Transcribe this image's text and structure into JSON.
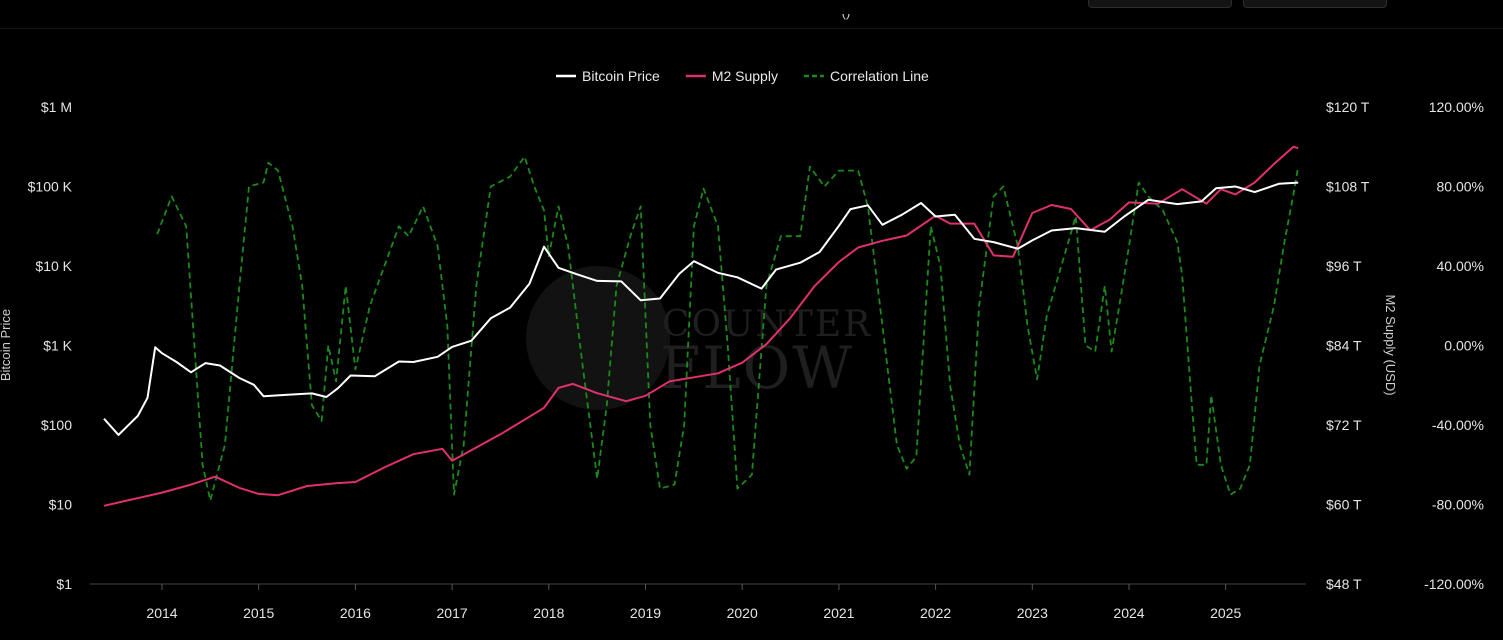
{
  "page": {
    "title_fragment": "()"
  },
  "chart_data": {
    "type": "line",
    "xlabel": "",
    "x_ticks": [
      "2014",
      "2015",
      "2016",
      "2017",
      "2018",
      "2019",
      "2020",
      "2021",
      "2022",
      "2023",
      "2024",
      "2025"
    ],
    "y_left": {
      "label": "Bitcoin Price",
      "scale": "log",
      "range": [
        1,
        1000000
      ],
      "ticks": [
        {
          "value": 1,
          "label": "$1"
        },
        {
          "value": 10,
          "label": "$10"
        },
        {
          "value": 100,
          "label": "$100"
        },
        {
          "value": 1000,
          "label": "$1 K"
        },
        {
          "value": 10000,
          "label": "$10 K"
        },
        {
          "value": 100000,
          "label": "$100 K"
        },
        {
          "value": 1000000,
          "label": "$1 M"
        }
      ]
    },
    "y_right": {
      "label": "M2 Supply (USD)",
      "range": [
        48,
        120
      ],
      "ticks": [
        {
          "value": 48,
          "label": "$48 T"
        },
        {
          "value": 60,
          "label": "$60 T"
        },
        {
          "value": 72,
          "label": "$72 T"
        },
        {
          "value": 84,
          "label": "$84 T"
        },
        {
          "value": 96,
          "label": "$96 T"
        },
        {
          "value": 108,
          "label": "$108 T"
        },
        {
          "value": 120,
          "label": "$120 T"
        }
      ]
    },
    "y_right2": {
      "range": [
        -120,
        120
      ],
      "ticks": [
        {
          "value": -120,
          "label": "-120.00%"
        },
        {
          "value": -80,
          "label": "-80.00%"
        },
        {
          "value": -40,
          "label": "-40.00%"
        },
        {
          "value": 0,
          "label": "0.00%"
        },
        {
          "value": 40,
          "label": "40.00%"
        },
        {
          "value": 80,
          "label": "80.00%"
        },
        {
          "value": 120,
          "label": "120.00%"
        }
      ]
    },
    "legend_position": "top-center",
    "grid": false,
    "series": [
      {
        "name": "Bitcoin Price",
        "color": "#ffffff",
        "style": "solid",
        "axis": "left",
        "points": [
          [
            2013.4,
            120
          ],
          [
            2013.55,
            75
          ],
          [
            2013.75,
            130
          ],
          [
            2013.85,
            220
          ],
          [
            2013.93,
            950
          ],
          [
            2014.0,
            800
          ],
          [
            2014.15,
            620
          ],
          [
            2014.3,
            460
          ],
          [
            2014.45,
            600
          ],
          [
            2014.6,
            560
          ],
          [
            2014.8,
            390
          ],
          [
            2014.95,
            320
          ],
          [
            2015.05,
            230
          ],
          [
            2015.3,
            240
          ],
          [
            2015.55,
            250
          ],
          [
            2015.7,
            225
          ],
          [
            2015.82,
            290
          ],
          [
            2015.95,
            420
          ],
          [
            2016.2,
            410
          ],
          [
            2016.45,
            630
          ],
          [
            2016.6,
            620
          ],
          [
            2016.85,
            720
          ],
          [
            2017.0,
            960
          ],
          [
            2017.2,
            1150
          ],
          [
            2017.4,
            2200
          ],
          [
            2017.6,
            3000
          ],
          [
            2017.8,
            6000
          ],
          [
            2017.95,
            17500
          ],
          [
            2018.1,
            9500
          ],
          [
            2018.3,
            7800
          ],
          [
            2018.5,
            6500
          ],
          [
            2018.75,
            6400
          ],
          [
            2018.95,
            3700
          ],
          [
            2019.15,
            3900
          ],
          [
            2019.35,
            8000
          ],
          [
            2019.5,
            11500
          ],
          [
            2019.75,
            8200
          ],
          [
            2019.95,
            7200
          ],
          [
            2020.2,
            5200
          ],
          [
            2020.35,
            9000
          ],
          [
            2020.6,
            11000
          ],
          [
            2020.8,
            15000
          ],
          [
            2021.0,
            32000
          ],
          [
            2021.12,
            52000
          ],
          [
            2021.3,
            58000
          ],
          [
            2021.45,
            33000
          ],
          [
            2021.65,
            44000
          ],
          [
            2021.85,
            62000
          ],
          [
            2022.0,
            42000
          ],
          [
            2022.2,
            44000
          ],
          [
            2022.4,
            22000
          ],
          [
            2022.6,
            20000
          ],
          [
            2022.85,
            16500
          ],
          [
            2023.0,
            21000
          ],
          [
            2023.2,
            28000
          ],
          [
            2023.45,
            30000
          ],
          [
            2023.75,
            27000
          ],
          [
            2023.95,
            42000
          ],
          [
            2024.2,
            68000
          ],
          [
            2024.5,
            60000
          ],
          [
            2024.75,
            65000
          ],
          [
            2024.9,
            95000
          ],
          [
            2025.1,
            100000
          ],
          [
            2025.3,
            85000
          ],
          [
            2025.55,
            108000
          ],
          [
            2025.75,
            112000
          ]
        ]
      },
      {
        "name": "M2 Supply",
        "color": "#e0306f",
        "style": "solid",
        "axis": "right",
        "points": [
          [
            2013.4,
            59.8
          ],
          [
            2013.7,
            60.8
          ],
          [
            2014.0,
            61.8
          ],
          [
            2014.3,
            63.0
          ],
          [
            2014.55,
            64.2
          ],
          [
            2014.8,
            62.5
          ],
          [
            2015.0,
            61.6
          ],
          [
            2015.2,
            61.4
          ],
          [
            2015.5,
            62.8
          ],
          [
            2015.8,
            63.2
          ],
          [
            2016.0,
            63.4
          ],
          [
            2016.3,
            65.6
          ],
          [
            2016.6,
            67.6
          ],
          [
            2016.9,
            68.4
          ],
          [
            2017.0,
            66.6
          ],
          [
            2017.25,
            68.6
          ],
          [
            2017.5,
            70.6
          ],
          [
            2017.75,
            72.8
          ],
          [
            2017.95,
            74.6
          ],
          [
            2018.1,
            77.6
          ],
          [
            2018.25,
            78.2
          ],
          [
            2018.5,
            76.8
          ],
          [
            2018.8,
            75.6
          ],
          [
            2019.0,
            76.4
          ],
          [
            2019.25,
            78.6
          ],
          [
            2019.5,
            79.2
          ],
          [
            2019.75,
            79.8
          ],
          [
            2020.0,
            81.4
          ],
          [
            2020.25,
            84.2
          ],
          [
            2020.5,
            88.2
          ],
          [
            2020.75,
            93.0
          ],
          [
            2021.0,
            96.6
          ],
          [
            2021.2,
            98.8
          ],
          [
            2021.45,
            99.8
          ],
          [
            2021.7,
            100.6
          ],
          [
            2022.0,
            103.6
          ],
          [
            2022.15,
            102.4
          ],
          [
            2022.4,
            102.4
          ],
          [
            2022.6,
            97.6
          ],
          [
            2022.8,
            97.4
          ],
          [
            2023.0,
            104.0
          ],
          [
            2023.2,
            105.2
          ],
          [
            2023.4,
            104.6
          ],
          [
            2023.6,
            101.4
          ],
          [
            2023.8,
            103.0
          ],
          [
            2024.0,
            105.6
          ],
          [
            2024.3,
            105.4
          ],
          [
            2024.55,
            107.6
          ],
          [
            2024.8,
            105.4
          ],
          [
            2024.95,
            107.6
          ],
          [
            2025.1,
            106.8
          ],
          [
            2025.3,
            108.6
          ],
          [
            2025.5,
            111.4
          ],
          [
            2025.7,
            114.0
          ],
          [
            2025.75,
            113.8
          ]
        ]
      },
      {
        "name": "Correlation Line",
        "color": "#1a8a1a",
        "style": "dashed",
        "axis": "right2",
        "points": [
          [
            2013.95,
            56
          ],
          [
            2014.1,
            75
          ],
          [
            2014.25,
            60
          ],
          [
            2014.35,
            -10
          ],
          [
            2014.42,
            -60
          ],
          [
            2014.5,
            -78
          ],
          [
            2014.65,
            -50
          ],
          [
            2014.8,
            30
          ],
          [
            2014.9,
            80
          ],
          [
            2015.05,
            82
          ],
          [
            2015.1,
            92
          ],
          [
            2015.2,
            88
          ],
          [
            2015.35,
            60
          ],
          [
            2015.45,
            30
          ],
          [
            2015.55,
            -30
          ],
          [
            2015.65,
            -38
          ],
          [
            2015.72,
            0
          ],
          [
            2015.8,
            -18
          ],
          [
            2015.9,
            30
          ],
          [
            2016.0,
            -12
          ],
          [
            2016.15,
            20
          ],
          [
            2016.3,
            40
          ],
          [
            2016.45,
            60
          ],
          [
            2016.55,
            55
          ],
          [
            2016.7,
            70
          ],
          [
            2016.85,
            50
          ],
          [
            2016.95,
            10
          ],
          [
            2017.02,
            -75
          ],
          [
            2017.12,
            -50
          ],
          [
            2017.25,
            30
          ],
          [
            2017.4,
            80
          ],
          [
            2017.6,
            85
          ],
          [
            2017.75,
            95
          ],
          [
            2017.85,
            80
          ],
          [
            2017.95,
            68
          ],
          [
            2018.0,
            45
          ],
          [
            2018.1,
            70
          ],
          [
            2018.2,
            50
          ],
          [
            2018.35,
            -10
          ],
          [
            2018.5,
            -67
          ],
          [
            2018.6,
            -30
          ],
          [
            2018.7,
            30
          ],
          [
            2018.85,
            56
          ],
          [
            2018.95,
            70
          ],
          [
            2019.05,
            -40
          ],
          [
            2019.15,
            -72
          ],
          [
            2019.3,
            -70
          ],
          [
            2019.4,
            -40
          ],
          [
            2019.5,
            60
          ],
          [
            2019.6,
            79
          ],
          [
            2019.75,
            60
          ],
          [
            2019.85,
            0
          ],
          [
            2019.95,
            -72
          ],
          [
            2020.1,
            -65
          ],
          [
            2020.25,
            30
          ],
          [
            2020.4,
            55
          ],
          [
            2020.6,
            55
          ],
          [
            2020.7,
            90
          ],
          [
            2020.85,
            80
          ],
          [
            2021.0,
            88
          ],
          [
            2021.2,
            88
          ],
          [
            2021.3,
            70
          ],
          [
            2021.45,
            10
          ],
          [
            2021.6,
            -50
          ],
          [
            2021.7,
            -62
          ],
          [
            2021.8,
            -56
          ],
          [
            2021.95,
            60
          ],
          [
            2022.05,
            40
          ],
          [
            2022.15,
            -20
          ],
          [
            2022.25,
            -50
          ],
          [
            2022.35,
            -65
          ],
          [
            2022.45,
            20
          ],
          [
            2022.6,
            75
          ],
          [
            2022.7,
            80
          ],
          [
            2022.85,
            50
          ],
          [
            2022.95,
            10
          ],
          [
            2023.05,
            -17
          ],
          [
            2023.15,
            15
          ],
          [
            2023.3,
            40
          ],
          [
            2023.45,
            65
          ],
          [
            2023.55,
            0
          ],
          [
            2023.65,
            -3
          ],
          [
            2023.75,
            30
          ],
          [
            2023.82,
            -3
          ],
          [
            2023.9,
            20
          ],
          [
            2024.0,
            50
          ],
          [
            2024.1,
            82
          ],
          [
            2024.2,
            75
          ],
          [
            2024.35,
            68
          ],
          [
            2024.5,
            52
          ],
          [
            2024.55,
            35
          ],
          [
            2024.65,
            -30
          ],
          [
            2024.7,
            -60
          ],
          [
            2024.8,
            -60
          ],
          [
            2024.85,
            -25
          ],
          [
            2024.95,
            -60
          ],
          [
            2025.05,
            -75
          ],
          [
            2025.15,
            -72
          ],
          [
            2025.25,
            -60
          ],
          [
            2025.35,
            -10
          ],
          [
            2025.5,
            20
          ],
          [
            2025.6,
            50
          ],
          [
            2025.7,
            76
          ],
          [
            2025.75,
            90
          ]
        ]
      }
    ]
  },
  "watermark": {
    "line1": "COUNTER",
    "line2": "FLOW"
  }
}
